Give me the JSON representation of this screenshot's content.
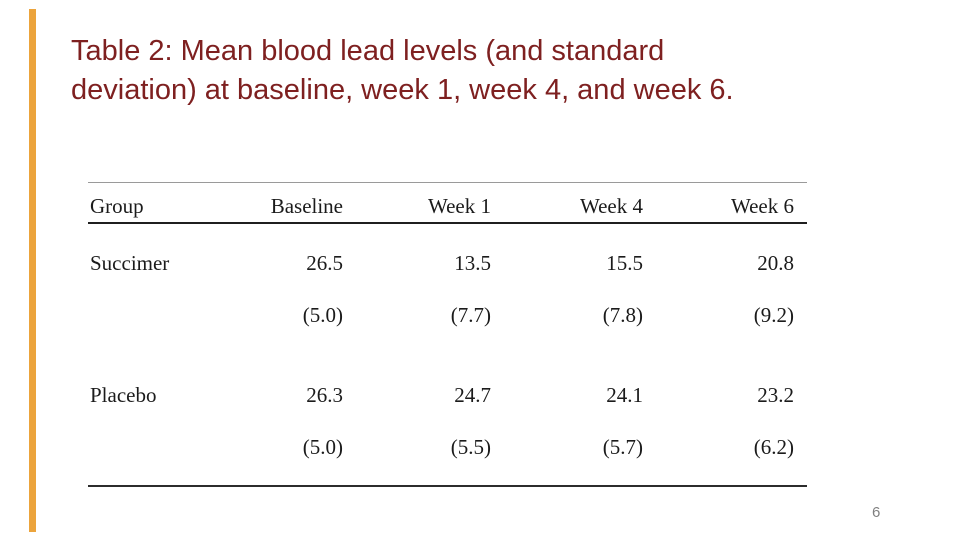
{
  "slide": {
    "title_line1": "Table 2: Mean blood lead levels (and standard",
    "title_line2": "deviation) at baseline, week 1, week 4, and week 6.",
    "page_number": "6"
  },
  "table": {
    "columns": [
      "Group",
      "Baseline",
      "Week 1",
      "Week 4",
      "Week 6"
    ],
    "rows": [
      {
        "group": "Succimer",
        "means": [
          "26.5",
          "13.5",
          "15.5",
          "20.8"
        ],
        "sds": [
          "(5.0)",
          "(7.7)",
          "(7.8)",
          "(9.2)"
        ]
      },
      {
        "group": "Placebo",
        "means": [
          "26.3",
          "24.7",
          "24.1",
          "23.2"
        ],
        "sds": [
          "(5.0)",
          "(5.5)",
          "(5.7)",
          "(6.2)"
        ]
      }
    ]
  },
  "colors": {
    "accent_bar": "#ECA43C",
    "title_text": "#7E2020",
    "table_text": "#1B1B1B",
    "top_rule": "#9A9A9A",
    "header_rule": "#1F1F1F",
    "bottom_rule": "#2C2C2C",
    "page_number": "#808080"
  }
}
